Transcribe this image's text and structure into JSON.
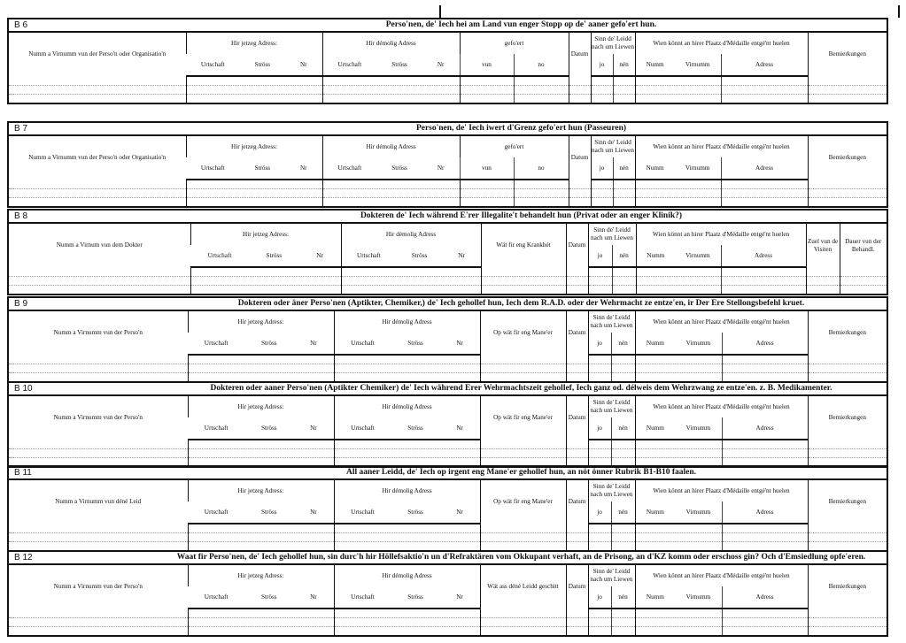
{
  "sections": [
    {
      "code": "B 6",
      "kind": "A",
      "title": "Perso'nen, de' Iech hei am Land vun enger Stopp  op de' aaner gefo'ert hun.",
      "row1": [
        "Numm a Virnumm vun der Perso'n oder Organisatio'n",
        "Hir jetzeg Adress:",
        "Hir démolig Adress",
        "gefo'ert",
        "Datum",
        "Sinn de' Leidd nach um Liewen",
        "Wien könnt an hirer Plaatz d'Médaille entgé'nt huelen",
        "Bemierkungen"
      ],
      "row2": [
        [
          "Urtschaft",
          "Ströss",
          "Nr"
        ],
        [
          "Urtschaft",
          "Ströss",
          "Nr"
        ],
        "vun",
        "no",
        "jo",
        "nén",
        [
          "Numm",
          "Virnumm"
        ],
        "Adress"
      ]
    },
    {
      "code": "B 7",
      "kind": "A",
      "title": "Perso'nen, de' Iech iwert d'Grenz gefo'ert hun (Passeuren)",
      "row1": [
        "Numm a Virnumm vun der Perso'n oder Organisatio'n",
        "Hir jetzeg Adress:",
        "Hir démolig Adress",
        "gefo'ert",
        "Datum",
        "Sinn de' Leidd nach um Liewen",
        "Wien könnt an hirer Plaatz d'Médaille entgé'nt huelen",
        "Bemierkungen"
      ],
      "row2": [
        [
          "Urtschaft",
          "Ströss",
          "Nr"
        ],
        [
          "Urtschaft",
          "Ströss",
          "Nr"
        ],
        "vun",
        "no",
        "jo",
        "nén",
        [
          "Numm",
          "Virnumm"
        ],
        "Adress"
      ]
    },
    {
      "code": "B 8",
      "kind": "B",
      "title": "Dokteren de' Iech während E'rer Illegalite't behandelt hun (Privat oder an enger Klinik?)",
      "row1": [
        "Numm a Virnum vun dem Dokter",
        "Hir jetzeg Adress:",
        "Hir démolig Adress",
        "Wät fir eng Krankhét",
        "Datum",
        "Sinn de' Leidd nach um Liewen",
        "Wien könnt an hirer Plaatz d'Médaille entgé'nt huelen",
        "Zuel vun de Visiten",
        "Dauer vun der Behandl."
      ],
      "row2": [
        [
          "Urtschaft",
          "Ströss",
          "Nr"
        ],
        [
          "Urtschaft",
          "Ströss",
          "Nr"
        ],
        "jo",
        "nén",
        [
          "Numm",
          "Virnumm"
        ],
        "Adress"
      ]
    },
    {
      "code": "B 9",
      "kind": "C",
      "title": "Dokteren oder äner Perso'nen (Aptikter, Chemiker,) de' Iech gehollef hun, Iech dem R.A.D. oder der Wehrmacht ze entze'en, ir Der Ere Stellongsbefehl kruet.",
      "row1": [
        "Numm a Virnumm vun der Perso'n",
        "Hir jetzeg Adress:",
        "Hir démolig Adress",
        "Op wät fir eng Mane'er",
        "Datum",
        "Sinn de' Leidd nach um Liewen",
        "Wien könnt an hirer Plaatz d'Médaille entgé'nt huelen",
        "Bemierkungen"
      ],
      "row2": [
        [
          "Urtschaft",
          "Ströss",
          "Nr"
        ],
        [
          "Urtschaft",
          "Ströss",
          "Nr"
        ],
        "jo",
        "nén",
        [
          "Numm",
          "Virnumm"
        ],
        "Adress"
      ]
    },
    {
      "code": "B 10",
      "kind": "C",
      "title": "Dokteren oder aaner Perso'nen (Aptikter Chemiker) de' Iech während Erer Wehrmachtszeit gehollef, Iech ganz od. délweis dem Wehrzwang ze entze'en. z. B. Medikamenter.",
      "row1": [
        "Numm a Virnumm vun der Perso'n",
        "Hir jetzeg Adress:",
        "Hir démolig Adress",
        "Op wät fir eng Mane'er",
        "Datum",
        "Sinn de' Leidd nach um Liewen",
        "Wien könnt an hirer Plaatz d'Médaille entgé'nt huelen",
        "Bemierkungen"
      ],
      "row2": [
        [
          "Urtschaft",
          "Ströss",
          "Nr"
        ],
        [
          "Urtschaft",
          "Ströss",
          "Nr"
        ],
        "jo",
        "nén",
        [
          "Numm",
          "Virnumm"
        ],
        "Adress"
      ]
    },
    {
      "code": "B 11",
      "kind": "C",
      "title": "All aaner Leidd, de' Iech op irgent eng Mane'er gehollef hun, an nöt önner Rubrik B1-B10 faalen.",
      "row1": [
        "Numm a Virnumm vun déné Leid",
        "Hir jetzeg Adress:",
        "Hir démolig Adress",
        "Op wät fir eng Mane'er",
        "Datum",
        "Sinn de' Leidd nach um Liewen",
        "Wien könnt an hirer Plaatz d'Médaille entgé'nt huelen",
        "Bemierkungen"
      ],
      "row2": [
        [
          "Urtschaft",
          "Ströss",
          "Nr"
        ],
        [
          "Urtschaft",
          "Ströss",
          "Nr"
        ],
        "jo",
        "nén",
        [
          "Numm",
          "Virnumm"
        ],
        "Adress"
      ]
    },
    {
      "code": "B 12",
      "kind": "C",
      "title": "Waat fir Perso'nen, de' Iech gehollef hun, sin durc'h hir Höllefsaktio'n un d'Refraktären vom Okkupant verhaft, an de Prisong, an d'KZ komm oder  erschoss gin? Och d'Emsiedlung opfe'eren.",
      "row1": [
        "Numm a Virnumm vun der Perso'n",
        "Hir jetzeg Adress:",
        "Hir démolig Adress",
        "Wät ass déné Leidd geschitt",
        "Datum",
        "Sinn de' Leidd nach um Liewen",
        "Wien könnt an hirer Plaatz d'Médaille entgé'nt huelen",
        "Bemierkungen"
      ],
      "row2": [
        [
          "Urtschaft",
          "Ströss",
          "Nr"
        ],
        [
          "Urtschaft",
          "Ströss",
          "Nr"
        ],
        "jo",
        "nén",
        [
          "Numm",
          "Virnumm"
        ],
        "Adress"
      ]
    }
  ]
}
